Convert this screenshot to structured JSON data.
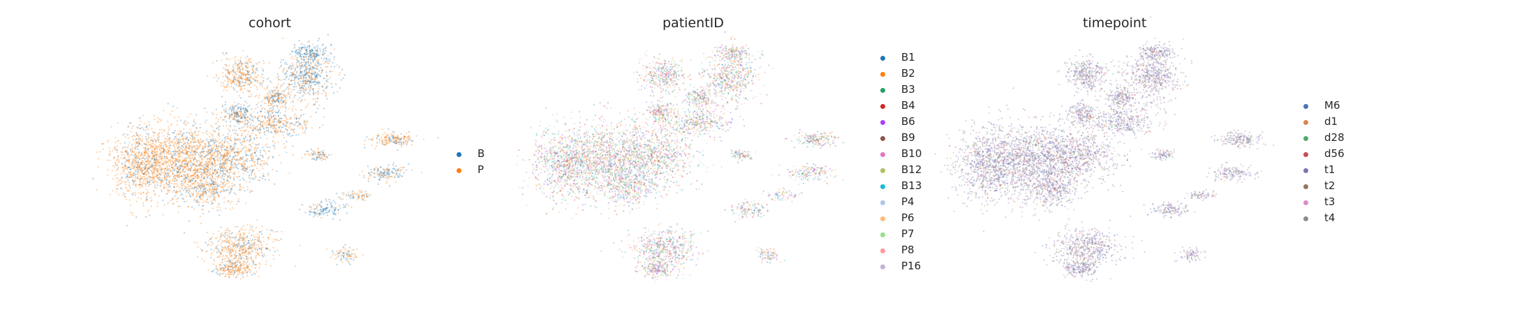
{
  "chart_data": [
    {
      "type": "scatter",
      "title": "cohort",
      "legend_position": "right",
      "grid": false,
      "axes_visible": false,
      "series": [
        {
          "name": "B",
          "color": "#1f77b4"
        },
        {
          "name": "P",
          "color": "#ff7f0e"
        }
      ]
    },
    {
      "type": "scatter",
      "title": "patientID",
      "legend_position": "right",
      "grid": false,
      "axes_visible": false,
      "series": [
        {
          "name": "B1",
          "color": "#1f77b4"
        },
        {
          "name": "B2",
          "color": "#ff7f0e"
        },
        {
          "name": "B3",
          "color": "#279e68"
        },
        {
          "name": "B4",
          "color": "#d62728"
        },
        {
          "name": "B6",
          "color": "#aa40fc"
        },
        {
          "name": "B9",
          "color": "#8c564b"
        },
        {
          "name": "B10",
          "color": "#e377c2"
        },
        {
          "name": "B12",
          "color": "#b5bd61"
        },
        {
          "name": "B13",
          "color": "#17becf"
        },
        {
          "name": "P4",
          "color": "#aec7e8"
        },
        {
          "name": "P6",
          "color": "#ffbb78"
        },
        {
          "name": "P7",
          "color": "#98df8a"
        },
        {
          "name": "P8",
          "color": "#ff9896"
        },
        {
          "name": "P16",
          "color": "#c5b0d5"
        }
      ]
    },
    {
      "type": "scatter",
      "title": "timepoint",
      "legend_position": "right",
      "grid": false,
      "axes_visible": false,
      "series": [
        {
          "name": "M6",
          "color": "#4c72b0"
        },
        {
          "name": "d1",
          "color": "#dd8452"
        },
        {
          "name": "d28",
          "color": "#55a868"
        },
        {
          "name": "d56",
          "color": "#c44e52"
        },
        {
          "name": "t1",
          "color": "#8172b3"
        },
        {
          "name": "t2",
          "color": "#937860"
        },
        {
          "name": "t3",
          "color": "#da8bc3"
        },
        {
          "name": "t4",
          "color": "#8c8c8c"
        }
      ]
    }
  ]
}
